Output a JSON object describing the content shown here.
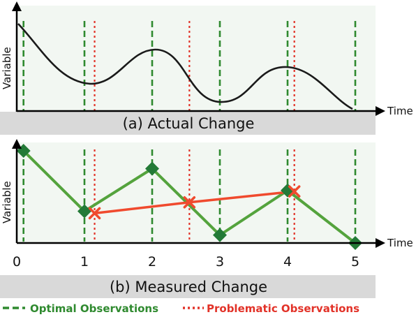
{
  "colors": {
    "optimal": "#2f8a2f",
    "problematic": "#e23228",
    "curve": "#1a1a1a",
    "band": "#d9d9d9",
    "plot_bg": "#f2f7f2",
    "marker_green": "#237a37",
    "line_green": "#54a33d",
    "line_red": "#f04a2e"
  },
  "panel_a": {
    "caption": "(a) Actual Change",
    "ylabel": "Variable",
    "xlabel": "Time"
  },
  "panel_b": {
    "caption": "(b) Measured Change",
    "ylabel": "Variable",
    "xlabel": "Time",
    "ticks": [
      "0",
      "1",
      "2",
      "3",
      "4",
      "5"
    ]
  },
  "legend": {
    "optimal_label": "Optimal Observations",
    "problematic_label": "Problematic Observations"
  },
  "chart_data": {
    "type": "line",
    "x_range": [
      0,
      5
    ],
    "optimal_times": [
      0.1,
      1,
      2,
      3,
      4,
      5
    ],
    "problematic_times": [
      1.15,
      2.55,
      4.1
    ],
    "series": [
      {
        "name": "Optimal Observations",
        "x": [
          0.1,
          1,
          2,
          3,
          4,
          5
        ],
        "y": [
          0.93,
          0.32,
          0.75,
          0.08,
          0.53,
          0.0
        ]
      },
      {
        "name": "Problematic Observations",
        "x": [
          1.15,
          2.55,
          4.1
        ],
        "y": [
          0.3,
          0.41,
          0.52
        ]
      }
    ]
  }
}
